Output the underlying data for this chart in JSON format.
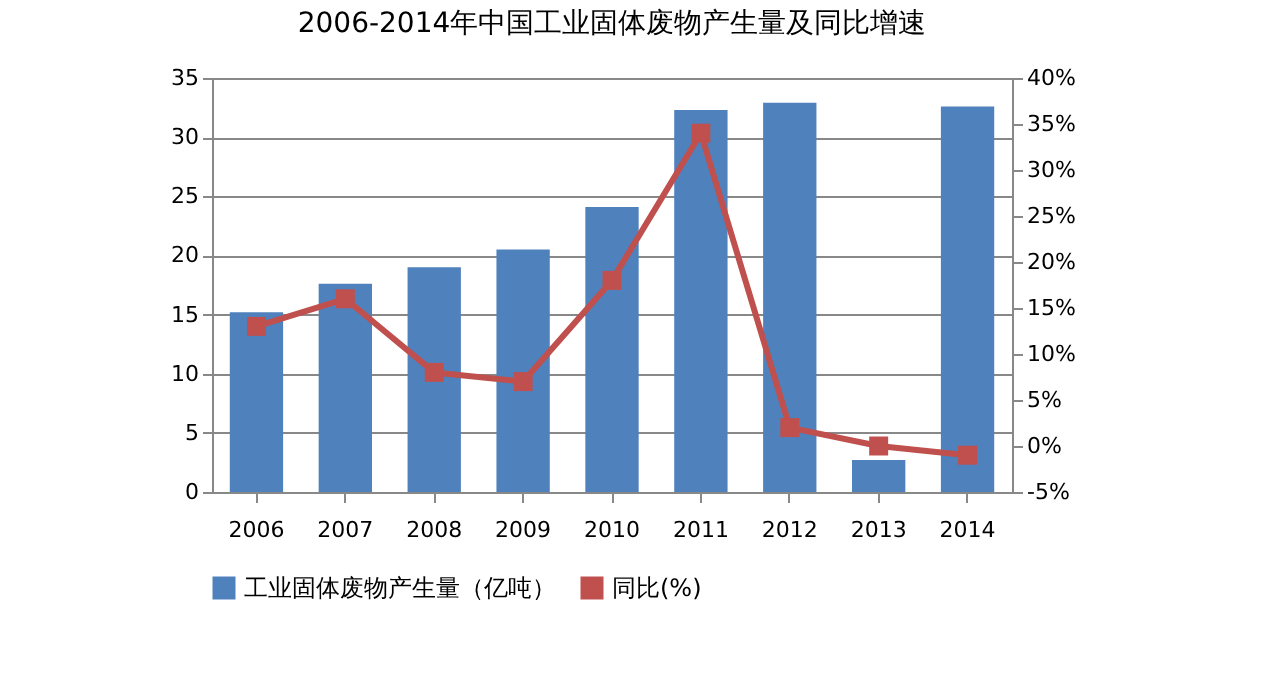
{
  "chart_data": {
    "type": "bar",
    "title": "2006-2014年中国工业固体废物产生量及同比增速",
    "categories": [
      "2006",
      "2007",
      "2008",
      "2009",
      "2010",
      "2011",
      "2012",
      "2013",
      "2014"
    ],
    "series": [
      {
        "name": "工业固体废物产生量（亿吨）",
        "color": "#4f81bd",
        "values": [
          15.2,
          17.6,
          19.0,
          20.5,
          24.1,
          32.3,
          32.9,
          2.7,
          32.6
        ]
      },
      {
        "name": "同比(%)",
        "type": "line",
        "axis": "y2",
        "color": "#c0504d",
        "marker": "square",
        "values": [
          13,
          16,
          8,
          7,
          18,
          34,
          2,
          0,
          -1
        ]
      }
    ],
    "ylim": [
      0,
      35
    ],
    "yticks": [
      0,
      5,
      10,
      15,
      20,
      25,
      30,
      35
    ],
    "y2lim": [
      -5,
      40
    ],
    "y2ticks": [
      {
        "value": -5,
        "label": "-5%"
      },
      {
        "value": 0,
        "label": "0%"
      },
      {
        "value": 5,
        "label": "5%"
      },
      {
        "value": 10,
        "label": "10%"
      },
      {
        "value": 15,
        "label": "15%"
      },
      {
        "value": 20,
        "label": "20%"
      },
      {
        "value": 25,
        "label": "25%"
      },
      {
        "value": 30,
        "label": "30%"
      },
      {
        "value": 35,
        "label": "35%"
      },
      {
        "value": 40,
        "label": "40%"
      }
    ],
    "grid": "y",
    "legend": "bottom"
  }
}
